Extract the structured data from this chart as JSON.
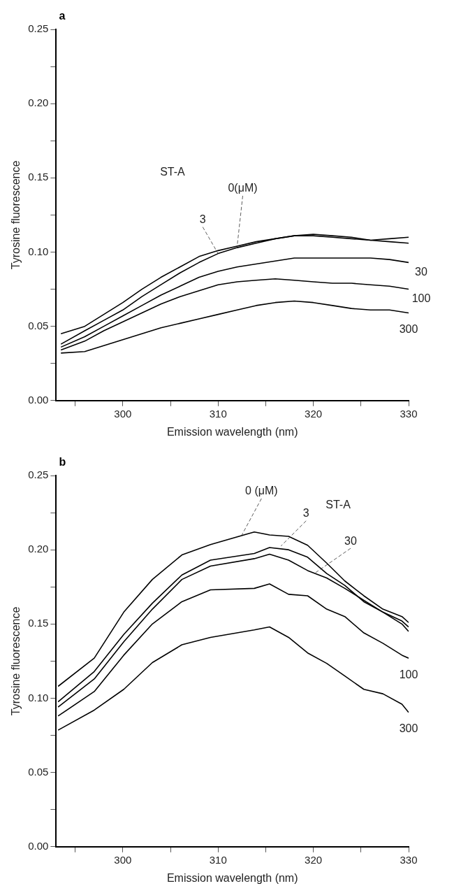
{
  "chart_data": [
    {
      "type": "line",
      "title": "a",
      "xlabel": "Emission wavelength (nm)",
      "ylabel": "Tyrosine fluorescence",
      "xlim": [
        293,
        330
      ],
      "ylim": [
        0,
        0.25
      ],
      "xticks": [
        {
          "value": 295,
          "label": null
        },
        {
          "value": 300,
          "label": "300"
        },
        {
          "value": 305,
          "label": null
        },
        {
          "value": 310,
          "label": "310"
        },
        {
          "value": 315,
          "label": null
        },
        {
          "value": 320,
          "label": "320"
        },
        {
          "value": 325,
          "label": null
        },
        {
          "value": 330,
          "label": "330"
        }
      ],
      "yticks": [
        {
          "value": 0,
          "label": "0.00"
        },
        {
          "value": 0.025,
          "label": null
        },
        {
          "value": 0.05,
          "label": "0.05"
        },
        {
          "value": 0.075,
          "label": null
        },
        {
          "value": 0.1,
          "label": "0.10"
        },
        {
          "value": 0.125,
          "label": null
        },
        {
          "value": 0.15,
          "label": "0.15"
        },
        {
          "value": 0.175,
          "label": null
        },
        {
          "value": 0.2,
          "label": "0.20"
        },
        {
          "value": 0.225,
          "label": null
        },
        {
          "value": 0.25,
          "label": "0.25"
        }
      ],
      "grid": false,
      "legend": false,
      "marker": "none",
      "line_style": "solid",
      "x": [
        293.5,
        296,
        298,
        300,
        302,
        304,
        306,
        308,
        310,
        312,
        314,
        316,
        318,
        320,
        322,
        324,
        326,
        328,
        330
      ],
      "series": [
        {
          "color": "#000000",
          "values": [
            0.045,
            0.05,
            0.058,
            0.066,
            0.075,
            0.083,
            0.09,
            0.097,
            0.101,
            0.104,
            0.107,
            0.109,
            0.111,
            0.112,
            0.111,
            0.11,
            0.108,
            0.107,
            0.106
          ]
        },
        {
          "color": "#000000",
          "values": [
            0.038,
            0.047,
            0.054,
            0.061,
            0.07,
            0.078,
            0.086,
            0.093,
            0.099,
            0.103,
            0.106,
            0.109,
            0.111,
            0.111,
            0.11,
            0.109,
            0.108,
            0.109,
            0.11
          ]
        },
        {
          "color": "#000000",
          "values": [
            0.036,
            0.043,
            0.05,
            0.057,
            0.064,
            0.071,
            0.077,
            0.083,
            0.087,
            0.09,
            0.092,
            0.094,
            0.096,
            0.096,
            0.096,
            0.096,
            0.096,
            0.095,
            0.093
          ]
        },
        {
          "color": "#000000",
          "values": [
            0.034,
            0.04,
            0.047,
            0.053,
            0.059,
            0.065,
            0.07,
            0.074,
            0.078,
            0.08,
            0.081,
            0.082,
            0.081,
            0.08,
            0.079,
            0.079,
            0.078,
            0.077,
            0.075
          ]
        },
        {
          "color": "#000000",
          "values": [
            0.032,
            0.033,
            0.037,
            0.041,
            0.045,
            0.049,
            0.052,
            0.055,
            0.058,
            0.061,
            0.064,
            0.066,
            0.067,
            0.066,
            0.064,
            0.062,
            0.061,
            0.061,
            0.059
          ]
        }
      ],
      "annotations": [
        "ST-A",
        {
          "text": "0(μM)",
          "x": 312,
          "y": 0.104
        },
        {
          "text": "3",
          "x": 310,
          "y": 0.099
        },
        {
          "text": "30",
          "x": 330,
          "y": 0.093
        },
        {
          "text": "100",
          "x": 330,
          "y": 0.075
        },
        {
          "text": "300",
          "x": 330,
          "y": 0.059
        }
      ]
    },
    {
      "type": "line",
      "title": "b",
      "xlabel": "Emission wavelength (nm)",
      "ylabel": "Tyrosine fluorescence",
      "xlim": [
        293,
        330
      ],
      "ylim": [
        0,
        0.25
      ],
      "xticks": [
        {
          "value": 295,
          "label": null
        },
        {
          "value": 300,
          "label": "300"
        },
        {
          "value": 305,
          "label": null
        },
        {
          "value": 310,
          "label": "310"
        },
        {
          "value": 315,
          "label": null
        },
        {
          "value": 320,
          "label": "320"
        },
        {
          "value": 325,
          "label": null
        },
        {
          "value": 330,
          "label": "330"
        }
      ],
      "yticks": [
        {
          "value": 0,
          "label": "0.00"
        },
        {
          "value": 0.025,
          "label": null
        },
        {
          "value": 0.05,
          "label": "0.05"
        },
        {
          "value": 0.075,
          "label": null
        },
        {
          "value": 0.1,
          "label": "0.10"
        },
        {
          "value": 0.125,
          "label": null
        },
        {
          "value": 0.15,
          "label": "0.15"
        },
        {
          "value": 0.175,
          "label": null
        },
        {
          "value": 0.2,
          "label": "0.20"
        },
        {
          "value": 0.225,
          "label": null
        },
        {
          "value": 0.25,
          "label": "0.25"
        }
      ],
      "grid": false,
      "legend": false,
      "marker": "none",
      "line_style": "solid",
      "x": [
        293.2,
        297,
        300.1,
        303.1,
        306.2,
        309.2,
        313.8,
        315.4,
        317.4,
        319.4,
        321.4,
        323.3,
        325.3,
        327.3,
        329.3,
        330
      ],
      "series": [
        {
          "color": "#000000",
          "values": [
            0.108,
            0.127,
            0.158,
            0.18,
            0.1965,
            0.2035,
            0.212,
            0.21,
            0.209,
            0.203,
            0.191,
            0.179,
            0.169,
            0.16,
            0.155,
            0.151
          ]
        },
        {
          "color": "#000000",
          "values": [
            0.0976,
            0.118,
            0.143,
            0.164,
            0.183,
            0.193,
            0.1975,
            0.2015,
            0.2,
            0.195,
            0.184,
            0.176,
            0.165,
            0.158,
            0.15,
            0.145
          ]
        },
        {
          "color": "#000000",
          "values": [
            0.094,
            0.113,
            0.138,
            0.16,
            0.18,
            0.189,
            0.194,
            0.197,
            0.193,
            0.186,
            0.181,
            0.174,
            0.166,
            0.158,
            0.152,
            0.148
          ]
        },
        {
          "color": "#000000",
          "values": [
            0.088,
            0.1045,
            0.129,
            0.15,
            0.165,
            0.173,
            0.174,
            0.177,
            0.17,
            0.169,
            0.16,
            0.155,
            0.144,
            0.137,
            0.129,
            0.127
          ]
        },
        {
          "color": "#000000",
          "values": [
            0.0785,
            0.092,
            0.106,
            0.124,
            0.136,
            0.141,
            0.146,
            0.148,
            0.141,
            0.1305,
            0.1235,
            0.115,
            0.106,
            0.103,
            0.096,
            0.0905
          ]
        }
      ],
      "annotations": [
        {
          "text": "0 (μM)",
          "x": 312.5,
          "y": 0.21
        },
        {
          "text": "3",
          "x": 316.6,
          "y": 0.2025
        },
        "ST-A",
        {
          "text": "30",
          "x": 320.1,
          "y": 0.184
        },
        {
          "text": "100",
          "x": 330,
          "y": 0.127
        },
        {
          "text": "300",
          "x": 330,
          "y": 0.0905
        }
      ]
    }
  ]
}
